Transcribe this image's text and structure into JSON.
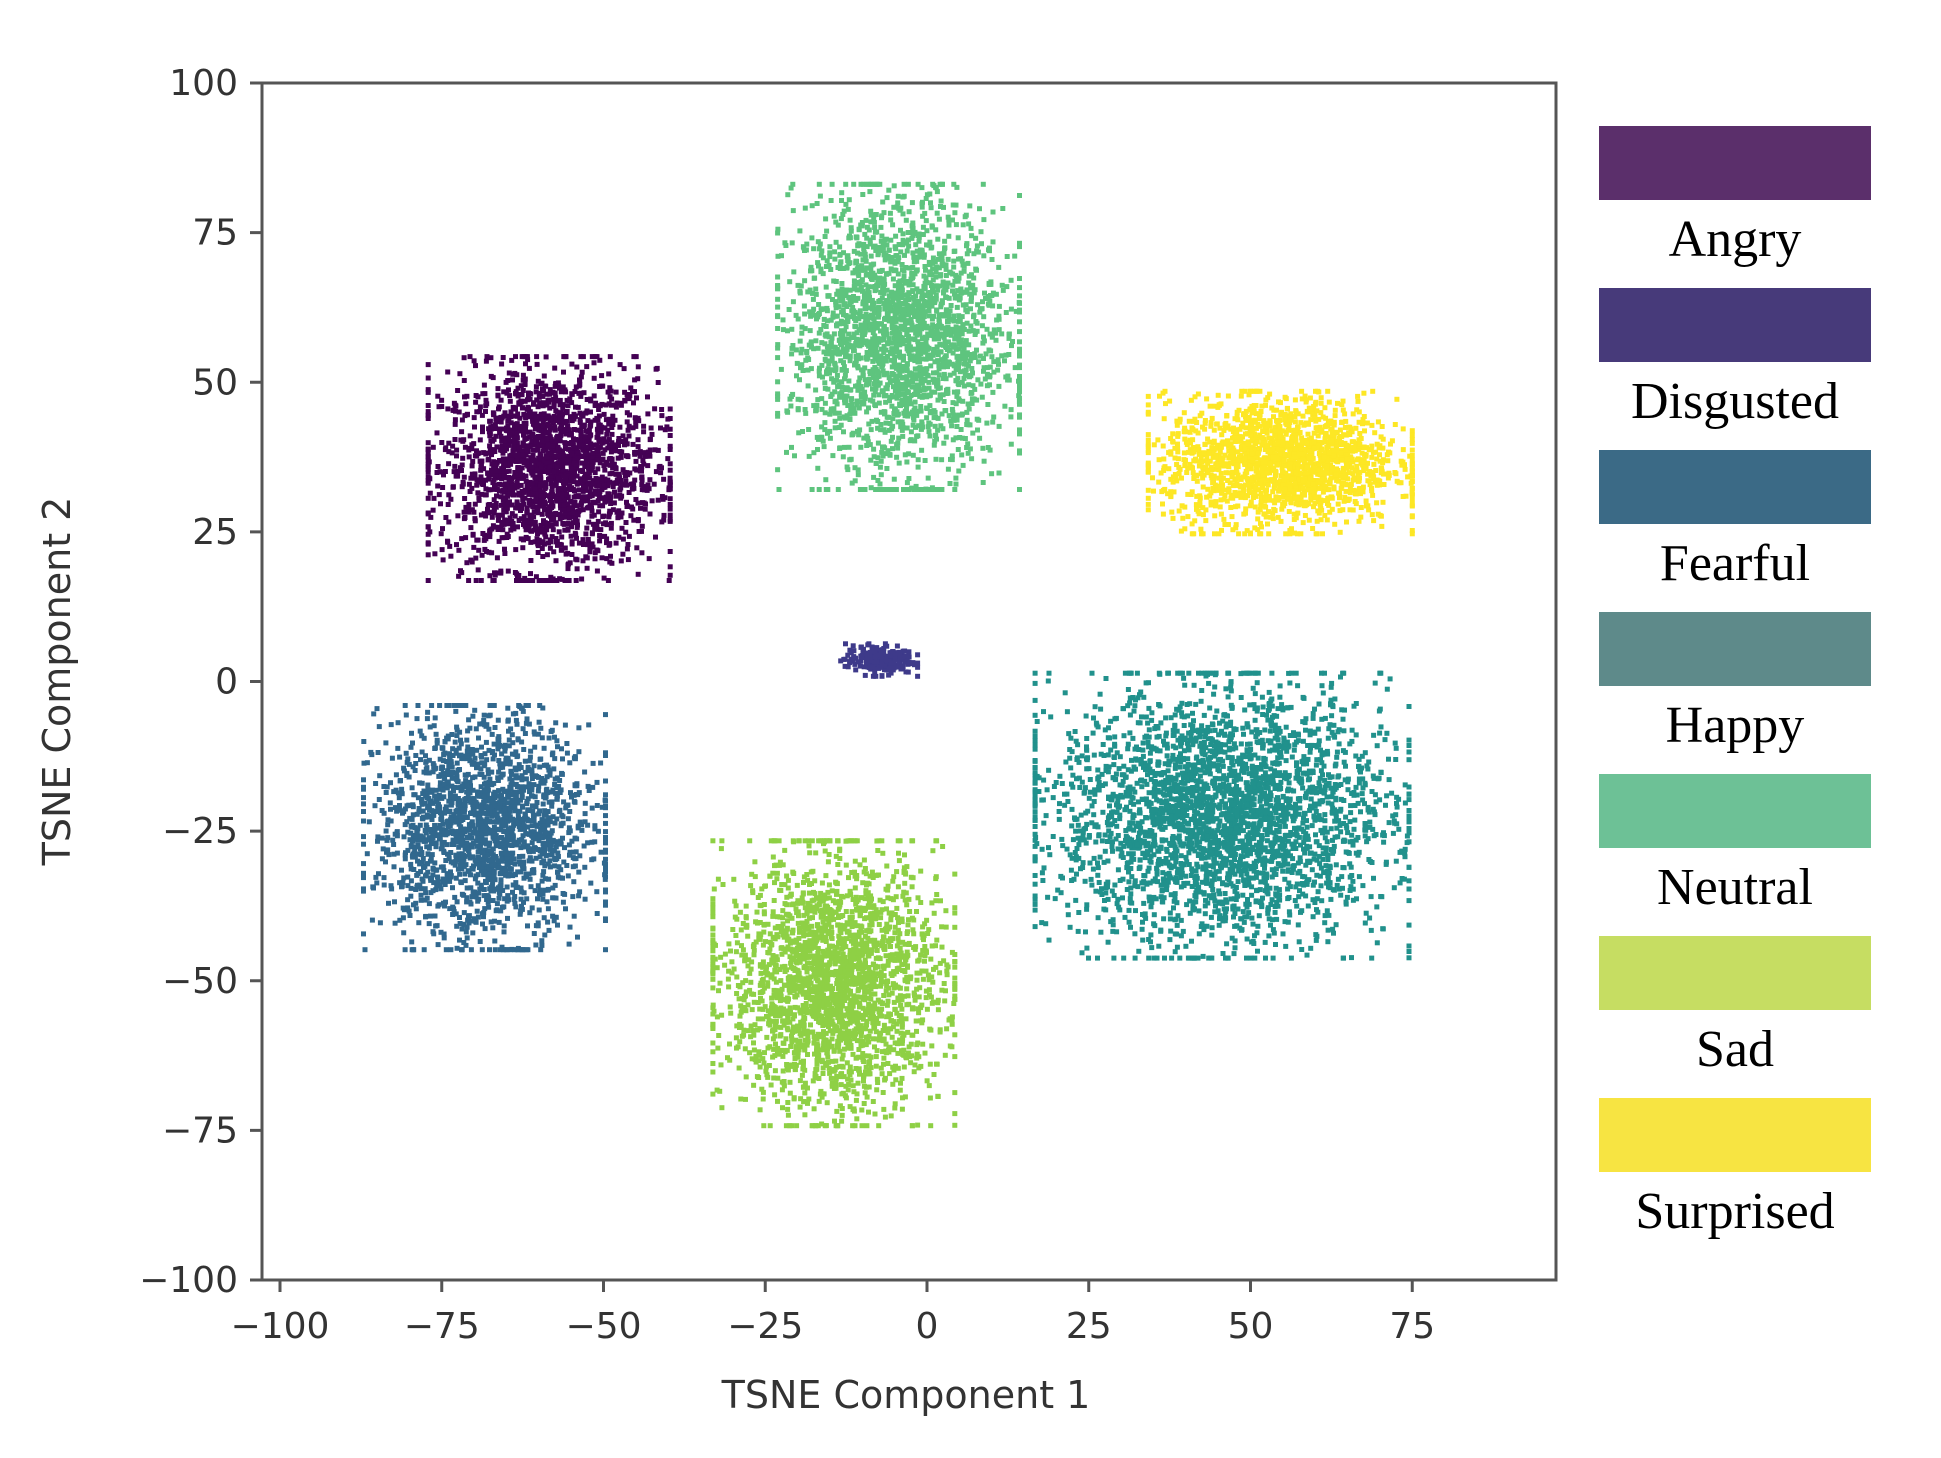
{
  "chart_data": {
    "type": "scatter",
    "title": "",
    "xlabel": "TSNE Component 1",
    "ylabel": "TSNE Component 2",
    "xlim": [
      -100,
      100
    ],
    "ylim": [
      -100,
      100
    ],
    "xticks": [
      "−100",
      "−75",
      "−50",
      "−25",
      "0",
      "25",
      "50",
      "75"
    ],
    "xtick_values": [
      -100,
      -75,
      -50,
      -25,
      0,
      25,
      50,
      75
    ],
    "yticks": [
      "100",
      "75",
      "50",
      "25",
      "0",
      "−25",
      "−50",
      "−75",
      "−100"
    ],
    "ytick_values": [
      100,
      75,
      50,
      25,
      0,
      -25,
      -50,
      -75,
      -100
    ],
    "grid": false,
    "legend_position": "right",
    "series": [
      {
        "name": "Angry",
        "color": "#5b2f6b",
        "marker_color": "#440154",
        "clusters": [
          {
            "center": [
              -56,
              36
            ],
            "spread": [
              11,
              11
            ],
            "count": 2100
          }
        ]
      },
      {
        "name": "Disgusted",
        "color": "#473a7a",
        "marker_color": "#3e3a8a",
        "clusters": [
          {
            "center": [
              -5,
              4
            ],
            "spread": [
              3.5,
              1.6
            ],
            "count": 220
          }
        ]
      },
      {
        "name": "Fearful",
        "color": "#3b6a86",
        "marker_color": "#31688e",
        "clusters": [
          {
            "center": [
              -66,
              -24
            ],
            "spread": [
              11,
              12
            ],
            "count": 1900
          }
        ]
      },
      {
        "name": "Happy",
        "color": "#5e8a8a",
        "marker_color": "#21918c",
        "clusters": [
          {
            "center": [
              48,
              -22
            ],
            "spread": [
              17,
              14
            ],
            "count": 3000
          }
        ]
      },
      {
        "name": "Neutral",
        "color": "#6dc196",
        "marker_color": "#5ec47e",
        "clusters": [
          {
            "center": [
              -2,
              58
            ],
            "spread": [
              11,
              15
            ],
            "count": 2300
          }
        ]
      },
      {
        "name": "Sad",
        "color": "#c6dd62",
        "marker_color": "#8ed045",
        "clusters": [
          {
            "center": [
              -12,
              -50
            ],
            "spread": [
              11,
              14
            ],
            "count": 2300
          }
        ]
      },
      {
        "name": "Surprised",
        "color": "#f7e442",
        "marker_color": "#fde725",
        "clusters": [
          {
            "center": [
              57,
              37
            ],
            "spread": [
              12,
              7
            ],
            "count": 1700
          }
        ]
      }
    ]
  }
}
